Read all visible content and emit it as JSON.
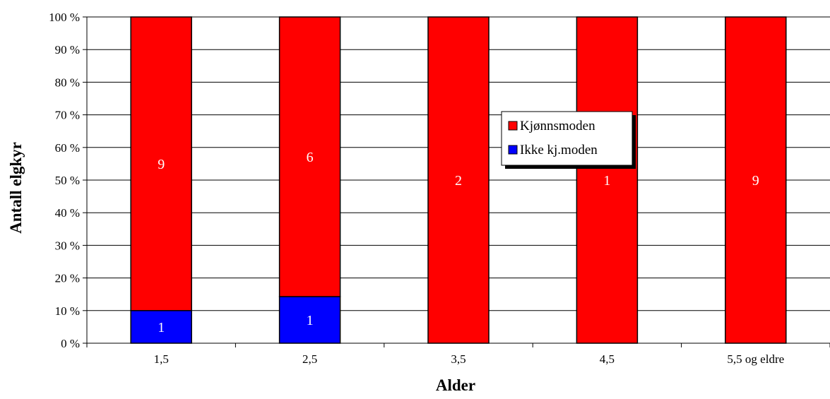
{
  "chart_data": {
    "type": "bar",
    "stacked": true,
    "normalized_percent": true,
    "categories": [
      "1,5",
      "2,5",
      "3,5",
      "4,5",
      "5,5 og eldre"
    ],
    "series": [
      {
        "name": "Ikke kj.moden",
        "values": [
          1,
          1,
          0,
          0,
          0
        ],
        "color": "#0000ff"
      },
      {
        "name": "Kjønnsmoden",
        "values": [
          9,
          6,
          2,
          1,
          9
        ],
        "color": "#ff0000"
      }
    ],
    "xlabel": "Alder",
    "ylabel": "Antall elgkyr",
    "ylim": [
      0,
      100
    ],
    "yticks": [
      "0 %",
      "10 %",
      "20 %",
      "30 %",
      "40 %",
      "50 %",
      "60 %",
      "70 %",
      "80 %",
      "90 %",
      "100 %"
    ],
    "grid": true,
    "legend": {
      "position": "center-right",
      "entries": [
        "Kjønnsmoden",
        "Ikke kj.moden"
      ]
    }
  }
}
